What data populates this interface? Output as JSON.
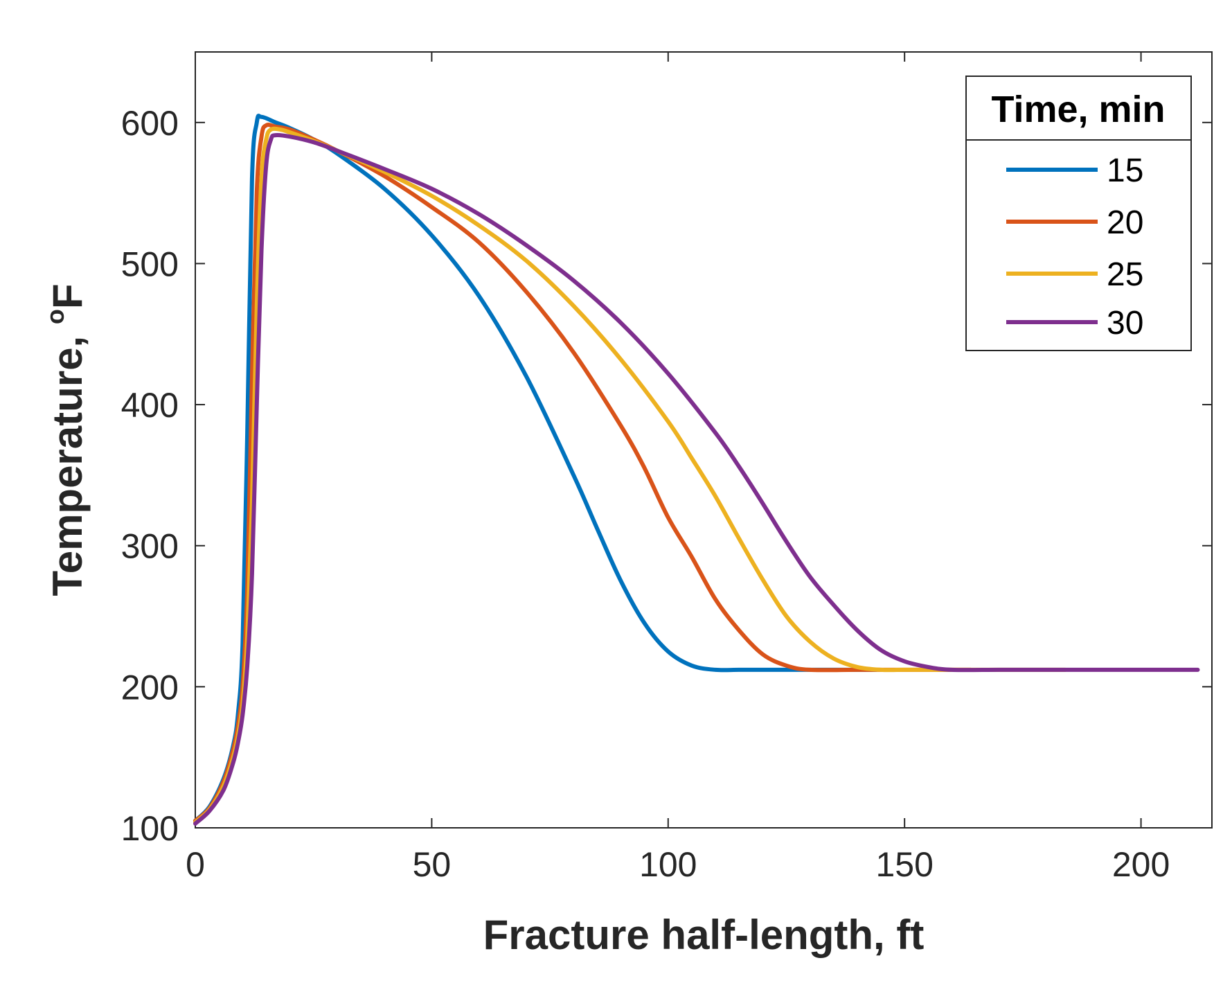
{
  "chart_data": {
    "type": "line",
    "xlabel": "Fracture half-length, ft",
    "ylabel_main": "Temperature, ",
    "ylabel_sup": "o",
    "ylabel_unit": "F",
    "xlim": [
      0,
      215
    ],
    "ylim": [
      100,
      650
    ],
    "xticks": [
      0,
      50,
      100,
      150,
      200
    ],
    "yticks": [
      100,
      200,
      300,
      400,
      500,
      600
    ],
    "xtick_labels": [
      "0",
      "50",
      "100",
      "150",
      "200"
    ],
    "ytick_labels": [
      "100",
      "200",
      "300",
      "400",
      "500",
      "600"
    ],
    "grid": false,
    "legend": {
      "title": "Time, min",
      "placement": "top-right"
    },
    "series": [
      {
        "name": "15",
        "color": "#0072BD",
        "points": [
          [
            0,
            105
          ],
          [
            3,
            115
          ],
          [
            6,
            135
          ],
          [
            8,
            158
          ],
          [
            9,
            180
          ],
          [
            10,
            230
          ],
          [
            11,
            380
          ],
          [
            12,
            560
          ],
          [
            13,
            600
          ],
          [
            14,
            604
          ],
          [
            17,
            600
          ],
          [
            20,
            596
          ],
          [
            25,
            588
          ],
          [
            30,
            578
          ],
          [
            40,
            553
          ],
          [
            50,
            520
          ],
          [
            60,
            477
          ],
          [
            70,
            420
          ],
          [
            80,
            350
          ],
          [
            85,
            312
          ],
          [
            90,
            275
          ],
          [
            95,
            245
          ],
          [
            100,
            225
          ],
          [
            105,
            215
          ],
          [
            110,
            212
          ],
          [
            115,
            212
          ],
          [
            120,
            212
          ],
          [
            125,
            212
          ],
          [
            130,
            212
          ],
          [
            135,
            212
          ],
          [
            140,
            212
          ],
          [
            144,
            212
          ]
        ]
      },
      {
        "name": "20",
        "color": "#D95319",
        "points": [
          [
            0,
            105
          ],
          [
            3,
            114
          ],
          [
            6,
            133
          ],
          [
            8,
            155
          ],
          [
            9,
            172
          ],
          [
            10,
            200
          ],
          [
            11,
            270
          ],
          [
            12,
            420
          ],
          [
            13,
            550
          ],
          [
            14,
            590
          ],
          [
            15,
            598
          ],
          [
            17,
            597
          ],
          [
            20,
            595
          ],
          [
            25,
            588
          ],
          [
            30,
            580
          ],
          [
            40,
            562
          ],
          [
            50,
            540
          ],
          [
            60,
            515
          ],
          [
            70,
            480
          ],
          [
            80,
            437
          ],
          [
            90,
            385
          ],
          [
            95,
            355
          ],
          [
            100,
            320
          ],
          [
            105,
            292
          ],
          [
            110,
            262
          ],
          [
            115,
            240
          ],
          [
            120,
            223
          ],
          [
            125,
            215
          ],
          [
            130,
            212
          ],
          [
            140,
            212
          ],
          [
            150,
            212
          ],
          [
            160,
            212
          ],
          [
            164,
            212
          ]
        ]
      },
      {
        "name": "25",
        "color": "#EDB120",
        "points": [
          [
            0,
            104
          ],
          [
            3,
            113
          ],
          [
            6,
            130
          ],
          [
            8,
            150
          ],
          [
            9,
            165
          ],
          [
            10,
            188
          ],
          [
            11,
            235
          ],
          [
            12,
            330
          ],
          [
            13,
            470
          ],
          [
            14,
            560
          ],
          [
            15,
            588
          ],
          [
            16,
            595
          ],
          [
            18,
            595
          ],
          [
            20,
            593
          ],
          [
            25,
            587
          ],
          [
            30,
            580
          ],
          [
            40,
            565
          ],
          [
            50,
            548
          ],
          [
            60,
            527
          ],
          [
            70,
            502
          ],
          [
            80,
            470
          ],
          [
            90,
            432
          ],
          [
            100,
            388
          ],
          [
            105,
            362
          ],
          [
            110,
            335
          ],
          [
            115,
            305
          ],
          [
            120,
            276
          ],
          [
            125,
            250
          ],
          [
            130,
            232
          ],
          [
            135,
            220
          ],
          [
            140,
            214
          ],
          [
            145,
            212
          ],
          [
            150,
            212
          ],
          [
            160,
            212
          ],
          [
            170,
            212
          ],
          [
            180,
            212
          ],
          [
            184,
            212
          ]
        ]
      },
      {
        "name": "30",
        "color": "#7E2F8E",
        "points": [
          [
            0,
            103
          ],
          [
            3,
            112
          ],
          [
            6,
            127
          ],
          [
            8,
            146
          ],
          [
            9,
            160
          ],
          [
            10,
            180
          ],
          [
            11,
            215
          ],
          [
            12,
            280
          ],
          [
            13,
            400
          ],
          [
            14,
            510
          ],
          [
            15,
            570
          ],
          [
            16,
            588
          ],
          [
            17,
            591
          ],
          [
            20,
            590
          ],
          [
            25,
            586
          ],
          [
            30,
            580
          ],
          [
            40,
            567
          ],
          [
            50,
            553
          ],
          [
            60,
            535
          ],
          [
            70,
            513
          ],
          [
            80,
            488
          ],
          [
            90,
            458
          ],
          [
            100,
            422
          ],
          [
            110,
            380
          ],
          [
            115,
            356
          ],
          [
            120,
            330
          ],
          [
            125,
            303
          ],
          [
            130,
            278
          ],
          [
            135,
            258
          ],
          [
            140,
            240
          ],
          [
            145,
            226
          ],
          [
            150,
            218
          ],
          [
            155,
            214
          ],
          [
            160,
            212
          ],
          [
            170,
            212
          ],
          [
            180,
            212
          ],
          [
            190,
            212
          ],
          [
            200,
            212
          ],
          [
            212,
            212
          ]
        ]
      }
    ]
  }
}
